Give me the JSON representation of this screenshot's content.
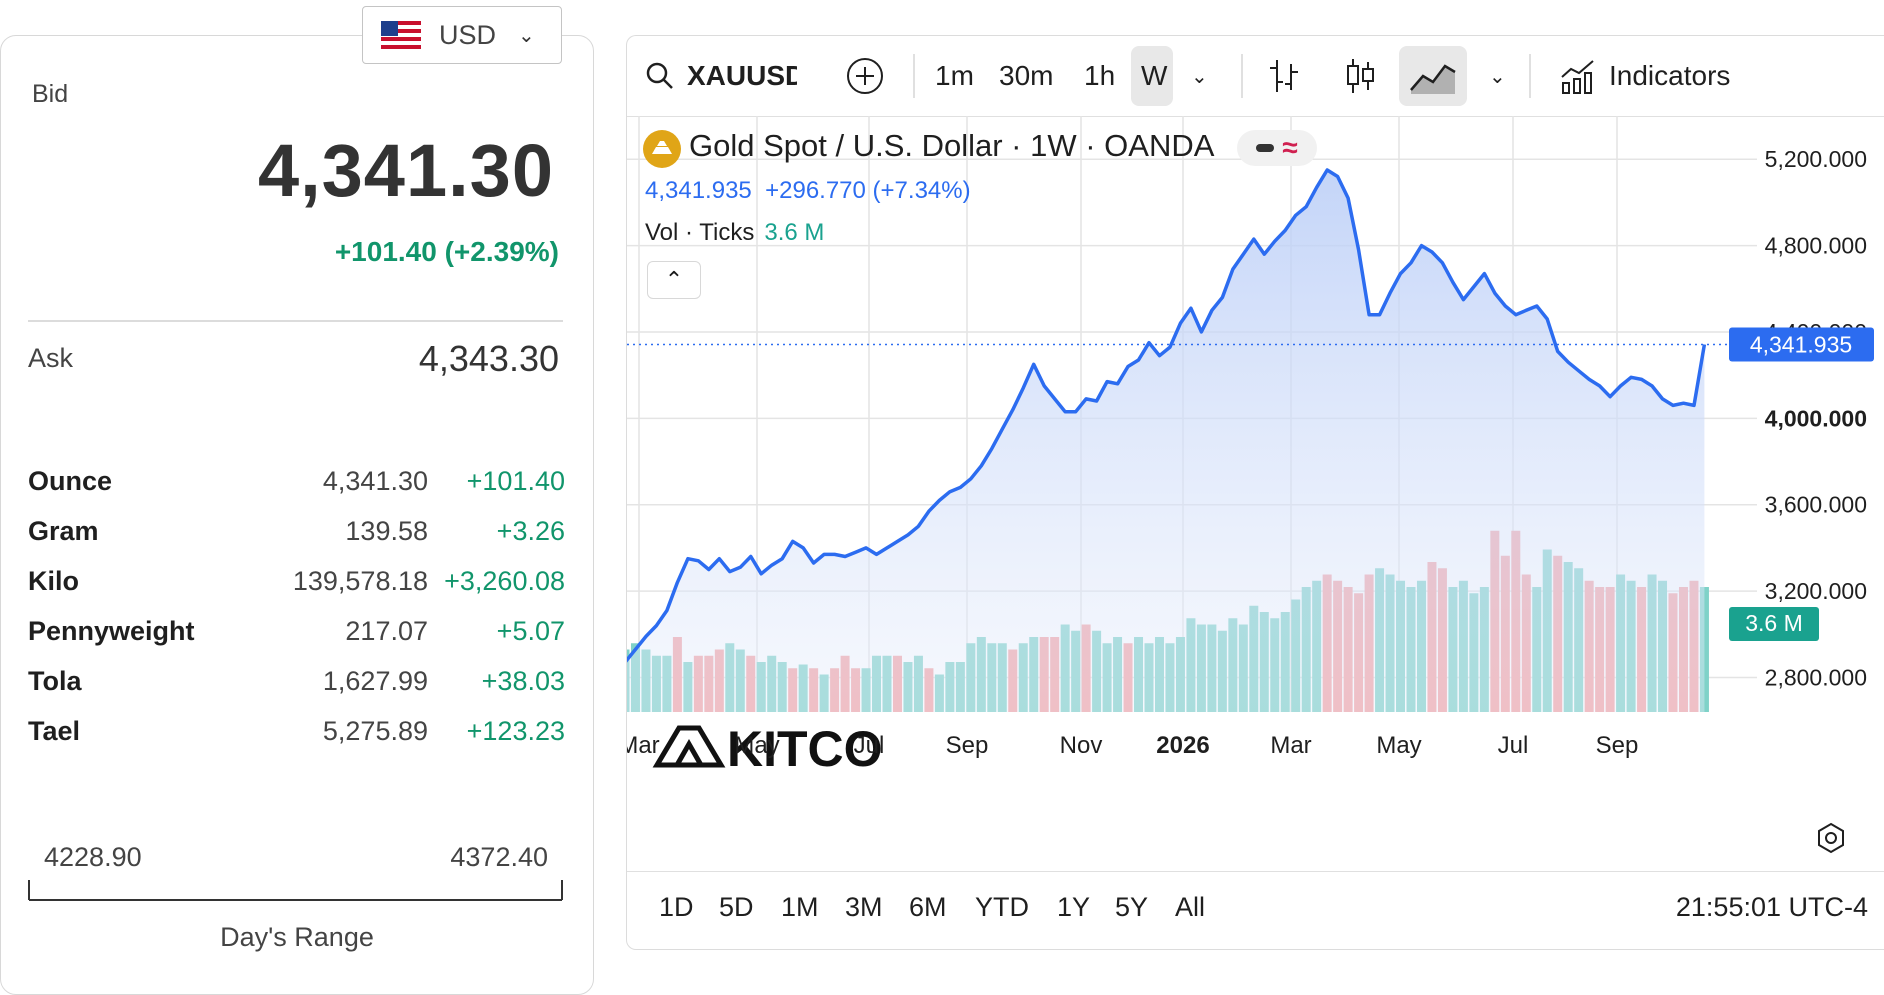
{
  "currency_select": {
    "code": "USD",
    "flag_icon": "us-flag-icon"
  },
  "quote": {
    "bid_label": "Bid",
    "bid": "4,341.30",
    "change": "+101.40 (+2.39%)",
    "ask_label": "Ask",
    "ask": "4,343.30"
  },
  "units": [
    {
      "name": "Ounce",
      "price": "4,341.30",
      "change": "+101.40"
    },
    {
      "name": "Gram",
      "price": "139.58",
      "change": "+3.26"
    },
    {
      "name": "Kilo",
      "price": "139,578.18",
      "change": "+3,260.08"
    },
    {
      "name": "Pennyweight",
      "price": "217.07",
      "change": "+5.07"
    },
    {
      "name": "Tola",
      "price": "1,627.99",
      "change": "+38.03"
    },
    {
      "name": "Tael",
      "price": "5,275.89",
      "change": "+123.23"
    }
  ],
  "day_range": {
    "low": "4228.90",
    "high": "4372.40",
    "label": "Day's Range"
  },
  "toolbar": {
    "symbol": "XAUUSD",
    "intervals": [
      "1m",
      "30m",
      "1h",
      "W"
    ],
    "active_interval": "W",
    "indicators_label": "Indicators"
  },
  "legend": {
    "title": "Gold Spot / U.S. Dollar · 1W · OANDA",
    "price_line": "4,341.935  +296.770 (+7.34%)",
    "vol_label": "Vol · Ticks",
    "vol_value": "3.6 M"
  },
  "watermark": "KITCO",
  "ranges": [
    "1D",
    "5D",
    "1M",
    "3M",
    "6M",
    "YTD",
    "1Y",
    "5Y",
    "All"
  ],
  "clock": "21:55:01 UTC-4",
  "colors": {
    "line": "#2c6cf0",
    "up_volume": "#7fd2c8",
    "down_volume": "#f4a1a3",
    "accent_up": "#11956b"
  },
  "chart_data": {
    "type": "area",
    "title": "Gold Spot / U.S. Dollar · 1W · OANDA",
    "x_tick_labels": [
      "Mar",
      "May",
      "Jul",
      "Sep",
      "Nov",
      "2026",
      "Mar",
      "May",
      "Jul",
      "Sep"
    ],
    "y_tick_labels": [
      "2,800.000",
      "3,200.000",
      "3,600.000",
      "4,000.000",
      "4,400.000",
      "4,800.000",
      "5,200.000"
    ],
    "ylim": [
      2640,
      5400
    ],
    "last_price_label": "4,341.935",
    "volume_label": "3.6 M",
    "series": [
      {
        "name": "Price",
        "values": [
          2870,
          2930,
          2990,
          3040,
          3110,
          3240,
          3350,
          3340,
          3300,
          3350,
          3290,
          3310,
          3360,
          3280,
          3320,
          3350,
          3430,
          3400,
          3330,
          3370,
          3370,
          3360,
          3380,
          3400,
          3370,
          3400,
          3430,
          3460,
          3500,
          3570,
          3620,
          3660,
          3680,
          3720,
          3780,
          3860,
          3950,
          4040,
          4140,
          4250,
          4150,
          4090,
          4030,
          4030,
          4090,
          4080,
          4170,
          4160,
          4240,
          4270,
          4350,
          4290,
          4330,
          4440,
          4510,
          4400,
          4500,
          4560,
          4690,
          4760,
          4830,
          4760,
          4820,
          4870,
          4940,
          4980,
          5070,
          5150,
          5120,
          5020,
          4780,
          4480,
          4480,
          4580,
          4670,
          4720,
          4800,
          4770,
          4720,
          4630,
          4550,
          4610,
          4670,
          4580,
          4520,
          4480,
          4500,
          4520,
          4460,
          4310,
          4260,
          4220,
          4180,
          4150,
          4100,
          4150,
          4190,
          4180,
          4150,
          4090,
          4060,
          4070,
          4060,
          4341.935
        ]
      },
      {
        "name": "Vol · Ticks",
        "values": [
          0.5,
          0.55,
          0.5,
          0.45,
          0.45,
          0.6,
          0.4,
          0.45,
          0.45,
          0.5,
          0.55,
          0.5,
          0.45,
          0.4,
          0.45,
          0.4,
          0.35,
          0.38,
          0.35,
          0.3,
          0.35,
          0.45,
          0.35,
          0.35,
          0.45,
          0.45,
          0.45,
          0.4,
          0.45,
          0.35,
          0.3,
          0.4,
          0.4,
          0.55,
          0.6,
          0.55,
          0.55,
          0.5,
          0.55,
          0.6,
          0.6,
          0.6,
          0.7,
          0.65,
          0.7,
          0.65,
          0.55,
          0.6,
          0.55,
          0.6,
          0.55,
          0.6,
          0.55,
          0.6,
          0.75,
          0.7,
          0.7,
          0.65,
          0.75,
          0.7,
          0.85,
          0.8,
          0.75,
          0.8,
          0.9,
          1.0,
          1.05,
          1.1,
          1.05,
          1.0,
          0.95,
          1.1,
          1.15,
          1.1,
          1.05,
          1.0,
          1.05,
          1.2,
          1.15,
          1.0,
          1.05,
          0.95,
          1.0,
          1.45,
          1.25,
          1.45,
          1.1,
          1.0,
          1.3,
          1.25,
          1.2,
          1.15,
          1.05,
          1.0,
          1.0,
          1.1,
          1.05,
          1.0,
          1.1,
          1.05,
          0.95,
          1.0,
          1.05,
          1.0
        ],
        "direction": [
          "u",
          "u",
          "u",
          "u",
          "u",
          "d",
          "u",
          "d",
          "d",
          "d",
          "u",
          "u",
          "d",
          "u",
          "u",
          "u",
          "d",
          "u",
          "d",
          "u",
          "d",
          "d",
          "d",
          "u",
          "u",
          "u",
          "d",
          "u",
          "u",
          "d",
          "u",
          "u",
          "u",
          "u",
          "u",
          "u",
          "u",
          "d",
          "u",
          "u",
          "d",
          "d",
          "u",
          "u",
          "d",
          "u",
          "u",
          "u",
          "d",
          "u",
          "u",
          "u",
          "u",
          "u",
          "u",
          "u",
          "u",
          "u",
          "u",
          "u",
          "u",
          "u",
          "u",
          "u",
          "u",
          "u",
          "u",
          "d",
          "d",
          "d",
          "d",
          "d",
          "u",
          "u",
          "u",
          "u",
          "u",
          "d",
          "d",
          "u",
          "u",
          "u",
          "u",
          "d",
          "d",
          "d",
          "d",
          "u",
          "u",
          "d",
          "u",
          "u",
          "d",
          "d",
          "d",
          "u",
          "u",
          "d",
          "u",
          "u",
          "d",
          "d",
          "d",
          "u"
        ]
      }
    ]
  }
}
